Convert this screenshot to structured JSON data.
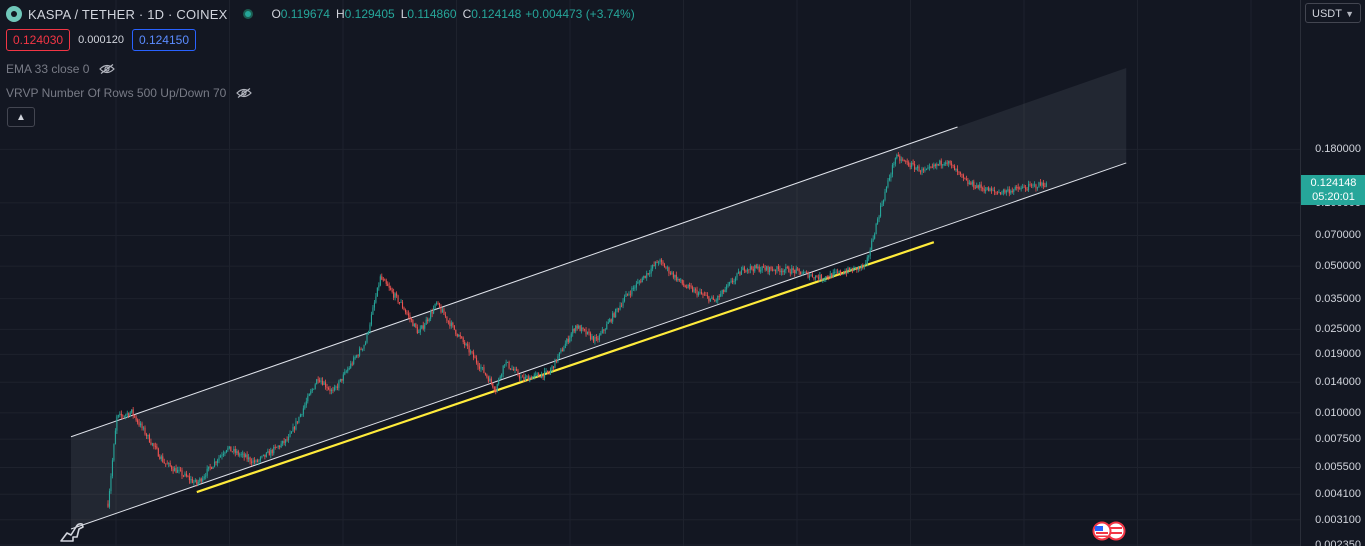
{
  "header": {
    "symbol": "KASPA / TETHER · 1D · COINEX",
    "ohlc": [
      {
        "k": "O",
        "v": "0.119674"
      },
      {
        "k": "H",
        "v": "0.129405"
      },
      {
        "k": "L",
        "v": "0.114860"
      },
      {
        "k": "C",
        "v": "0.124148"
      }
    ],
    "change": "+0.004473 (+3.74%)"
  },
  "trade": {
    "sell": "0.124030",
    "spread": "0.000120",
    "buy": "0.124150"
  },
  "indicators": [
    {
      "label": "EMA 33 close 0"
    },
    {
      "label": "VRVP Number Of Rows 500 Up/Down 70"
    }
  ],
  "axis": {
    "currency": "USDT",
    "last_price": "0.124148",
    "countdown": "05:20:01"
  },
  "colors": {
    "up": "#26a69a",
    "down": "#ef5350",
    "channel": "#ffffff",
    "support": "#ffeb3b",
    "background": "#131722"
  },
  "chart_data": {
    "type": "candlestick",
    "scale": "log",
    "y_ticks": [
      {
        "value": 0.18,
        "label": "0.180000"
      },
      {
        "value": 0.1,
        "label": "0.100000"
      },
      {
        "value": 0.07,
        "label": "0.070000"
      },
      {
        "value": 0.05,
        "label": "0.050000"
      },
      {
        "value": 0.035,
        "label": "0.035000"
      },
      {
        "value": 0.025,
        "label": "0.025000"
      },
      {
        "value": 0.019,
        "label": "0.019000"
      },
      {
        "value": 0.014,
        "label": "0.014000"
      },
      {
        "value": 0.01,
        "label": "0.010000"
      },
      {
        "value": 0.0075,
        "label": "0.007500"
      },
      {
        "value": 0.0055,
        "label": "0.005500"
      },
      {
        "value": 0.0041,
        "label": "0.004100"
      },
      {
        "value": 0.0031,
        "label": "0.003100"
      },
      {
        "value": 0.00235,
        "label": "0.002350"
      }
    ],
    "ylim": [
      0.00235,
      0.23
    ],
    "last_price": 0.124148,
    "price_path": [
      [
        0,
        0.0037
      ],
      [
        6,
        0.0095
      ],
      [
        16,
        0.0101
      ],
      [
        38,
        0.0058
      ],
      [
        60,
        0.0046
      ],
      [
        80,
        0.0068
      ],
      [
        100,
        0.0058
      ],
      [
        122,
        0.0075
      ],
      [
        142,
        0.0148
      ],
      [
        152,
        0.0125
      ],
      [
        174,
        0.0218
      ],
      [
        184,
        0.044
      ],
      [
        198,
        0.033
      ],
      [
        210,
        0.024
      ],
      [
        222,
        0.033
      ],
      [
        262,
        0.013
      ],
      [
        268,
        0.0175
      ],
      [
        280,
        0.0145
      ],
      [
        298,
        0.0155
      ],
      [
        316,
        0.026
      ],
      [
        330,
        0.022
      ],
      [
        350,
        0.036
      ],
      [
        372,
        0.053
      ],
      [
        390,
        0.04
      ],
      [
        410,
        0.034
      ],
      [
        430,
        0.049
      ],
      [
        460,
        0.048
      ],
      [
        482,
        0.044
      ],
      [
        512,
        0.05
      ],
      [
        522,
        0.095
      ],
      [
        532,
        0.165
      ],
      [
        552,
        0.14
      ],
      [
        566,
        0.16
      ],
      [
        580,
        0.125
      ],
      [
        600,
        0.112
      ],
      [
        620,
        0.118
      ],
      [
        625,
        0.12
      ],
      [
        634,
        0.124
      ]
    ],
    "channel_upper": [
      [
        -25,
        0.0077
      ],
      [
        574,
        0.23
      ]
    ],
    "channel_lower": [
      [
        -25,
        0.0028
      ],
      [
        688,
        0.155
      ]
    ],
    "support_line": [
      [
        60,
        0.0042
      ],
      [
        558,
        0.065
      ]
    ]
  }
}
